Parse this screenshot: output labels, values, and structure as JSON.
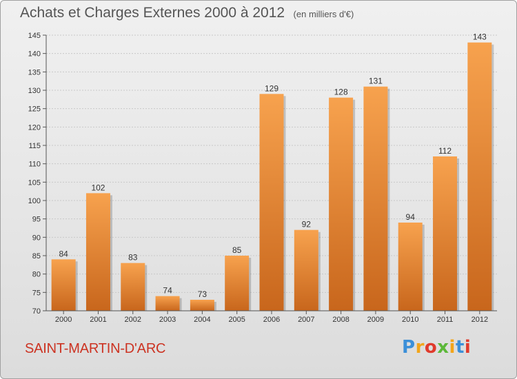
{
  "header": {
    "title": "Achats et Charges Externes 2000 à 2012",
    "unit": "(en milliers d'€)"
  },
  "footer": {
    "city": "SAINT-MARTIN-D'ARC",
    "logo_letters": [
      "P",
      "r",
      "o",
      "x",
      "i",
      "t",
      "i"
    ],
    "logo_colors": [
      "#3b8fd8",
      "#f2a51a",
      "#e03a2c",
      "#5cb83a",
      "#f2a51a",
      "#3b8fd8",
      "#e03a2c"
    ]
  },
  "colors": {
    "bar_light": "#f7a24e",
    "bar_dark": "#c8661c",
    "grid": "#c8c8c8",
    "title": "#555555",
    "city": "#cc3322"
  },
  "chart_data": {
    "type": "bar",
    "title": "Achats et Charges Externes 2000 à 2012",
    "subtitle": "(en milliers d'€)",
    "xlabel": "",
    "ylabel": "",
    "categories": [
      "2000",
      "2001",
      "2002",
      "2003",
      "2004",
      "2005",
      "2006",
      "2007",
      "2008",
      "2009",
      "2010",
      "2011",
      "2012"
    ],
    "values": [
      84,
      102,
      83,
      74,
      73,
      85,
      129,
      92,
      128,
      131,
      94,
      112,
      143
    ],
    "ylim": [
      70,
      145
    ],
    "yticks": [
      70,
      75,
      80,
      85,
      90,
      95,
      100,
      105,
      110,
      115,
      120,
      125,
      130,
      135,
      140,
      145
    ],
    "grid": true,
    "data_labels": true
  }
}
